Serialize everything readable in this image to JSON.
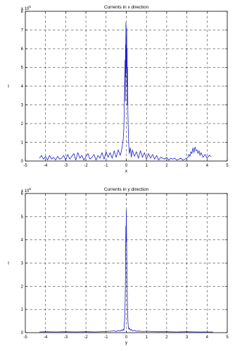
{
  "chart_data": [
    {
      "type": "line",
      "title": "Currents in x direction",
      "xlabel": "x",
      "ylabel": "I",
      "exponent_label": {
        "base": "x 10",
        "power": "5"
      },
      "xlim": [
        -5,
        5
      ],
      "ylim": [
        0,
        8
      ],
      "xticks": [
        "-5",
        "-4",
        "-3",
        "-2",
        "-1",
        "0",
        "1",
        "2",
        "3",
        "4",
        "5"
      ],
      "yticks": [
        "0",
        "1",
        "2",
        "3",
        "4",
        "5",
        "6",
        "7",
        "8"
      ],
      "grid": true,
      "line_color": "#1f1fcf",
      "series": [
        {
          "x": [
            -4.3,
            -4.2,
            -4.1,
            -4.0,
            -3.9,
            -3.8,
            -3.7,
            -3.6,
            -3.5,
            -3.4,
            -3.3,
            -3.2,
            -3.1,
            -3.0,
            -2.9,
            -2.8,
            -2.7,
            -2.6,
            -2.5,
            -2.4,
            -2.3,
            -2.2,
            -2.1,
            -2.0,
            -1.9,
            -1.8,
            -1.7,
            -1.6,
            -1.5,
            -1.4,
            -1.3,
            -1.2,
            -1.1,
            -1.0,
            -0.9,
            -0.8,
            -0.7,
            -0.6,
            -0.5,
            -0.4,
            -0.3,
            -0.25,
            -0.2,
            -0.15,
            -0.12,
            -0.1,
            -0.08,
            -0.06,
            -0.05,
            -0.04,
            -0.03,
            -0.02,
            -0.01,
            0.0,
            0.01,
            0.02,
            0.03,
            0.04,
            0.05,
            0.06,
            0.08,
            0.1,
            0.12,
            0.15,
            0.2,
            0.25,
            0.3,
            0.4,
            0.5,
            0.6,
            0.7,
            0.8,
            0.9,
            1.0,
            1.1,
            1.2,
            1.3,
            1.4,
            1.5,
            1.6,
            1.7,
            1.8,
            1.9,
            2.0,
            2.1,
            2.2,
            2.3,
            2.4,
            2.5,
            2.6,
            2.7,
            2.8,
            2.9,
            3.0,
            3.05,
            3.1,
            3.15,
            3.2,
            3.25,
            3.3,
            3.35,
            3.4,
            3.45,
            3.5,
            3.55,
            3.6,
            3.65,
            3.7,
            3.8,
            3.9,
            4.0,
            4.1,
            4.2
          ],
          "y": [
            0.15,
            0.3,
            0.1,
            0.25,
            0.05,
            0.3,
            0.1,
            0.2,
            0.05,
            0.25,
            0.1,
            0.15,
            0.3,
            0.05,
            0.35,
            0.1,
            0.25,
            0.4,
            0.05,
            0.45,
            0.15,
            0.3,
            0.05,
            0.25,
            0.4,
            0.1,
            0.2,
            0.35,
            0.05,
            0.3,
            0.15,
            0.45,
            0.1,
            0.5,
            0.2,
            0.45,
            0.15,
            0.55,
            0.2,
            0.6,
            0.3,
            0.5,
            0.8,
            1.2,
            1.8,
            2.8,
            4.2,
            5.4,
            3.2,
            6.2,
            4.5,
            7.4,
            5.0,
            6.6,
            4.8,
            7.1,
            4.0,
            6.0,
            3.0,
            5.0,
            2.5,
            1.6,
            0.9,
            0.4,
            0.7,
            0.2,
            0.6,
            0.25,
            0.5,
            0.15,
            0.55,
            0.2,
            0.45,
            0.1,
            0.4,
            0.15,
            0.35,
            0.1,
            0.3,
            0.05,
            0.2,
            0.15,
            0.1,
            0.2,
            0.05,
            0.15,
            0.1,
            0.15,
            0.05,
            0.1,
            0.15,
            0.05,
            0.1,
            0.15,
            0.2,
            0.35,
            0.25,
            0.5,
            0.4,
            0.7,
            0.45,
            0.75,
            0.55,
            0.6,
            0.4,
            0.55,
            0.3,
            0.45,
            0.2,
            0.35,
            0.15,
            0.3,
            0.25
          ]
        }
      ]
    },
    {
      "type": "line",
      "title": "Currents in y direction",
      "xlabel": "y",
      "ylabel": "I",
      "exponent_label": {
        "base": "x 10",
        "power": "5"
      },
      "xlim": [
        -5,
        5
      ],
      "ylim": [
        0,
        6
      ],
      "xticks": [
        "-5",
        "-4",
        "-3",
        "-2",
        "-1",
        "0",
        "1",
        "2",
        "3",
        "4",
        "5"
      ],
      "yticks": [
        "0",
        "1",
        "2",
        "3",
        "4",
        "5",
        "6"
      ],
      "grid": true,
      "line_color": "#1f1fcf",
      "series": [
        {
          "x": [
            -4.3,
            -4.0,
            -3.5,
            -3.0,
            -2.5,
            -2.0,
            -1.5,
            -1.0,
            -0.8,
            -0.6,
            -0.5,
            -0.4,
            -0.3,
            -0.25,
            -0.2,
            -0.15,
            -0.12,
            -0.1,
            -0.08,
            -0.06,
            -0.04,
            -0.03,
            -0.02,
            -0.01,
            0.0,
            0.01,
            0.02,
            0.03,
            0.04,
            0.06,
            0.08,
            0.1,
            0.12,
            0.15,
            0.2,
            0.25,
            0.3,
            0.4,
            0.5,
            0.6,
            0.8,
            1.0,
            1.5,
            2.0,
            2.5,
            3.0,
            3.5,
            4.0,
            4.3
          ],
          "y": [
            0.03,
            0.04,
            0.03,
            0.04,
            0.03,
            0.04,
            0.03,
            0.05,
            0.06,
            0.08,
            0.05,
            0.1,
            0.06,
            0.12,
            0.08,
            0.15,
            0.1,
            0.35,
            0.6,
            1.2,
            2.4,
            3.8,
            4.6,
            3.9,
            5.3,
            4.4,
            3.6,
            2.8,
            2.2,
            1.1,
            0.5,
            0.25,
            0.15,
            0.2,
            0.1,
            0.14,
            0.08,
            0.1,
            0.06,
            0.07,
            0.05,
            0.06,
            0.04,
            0.04,
            0.03,
            0.04,
            0.03,
            0.03,
            0.03
          ]
        }
      ]
    }
  ]
}
